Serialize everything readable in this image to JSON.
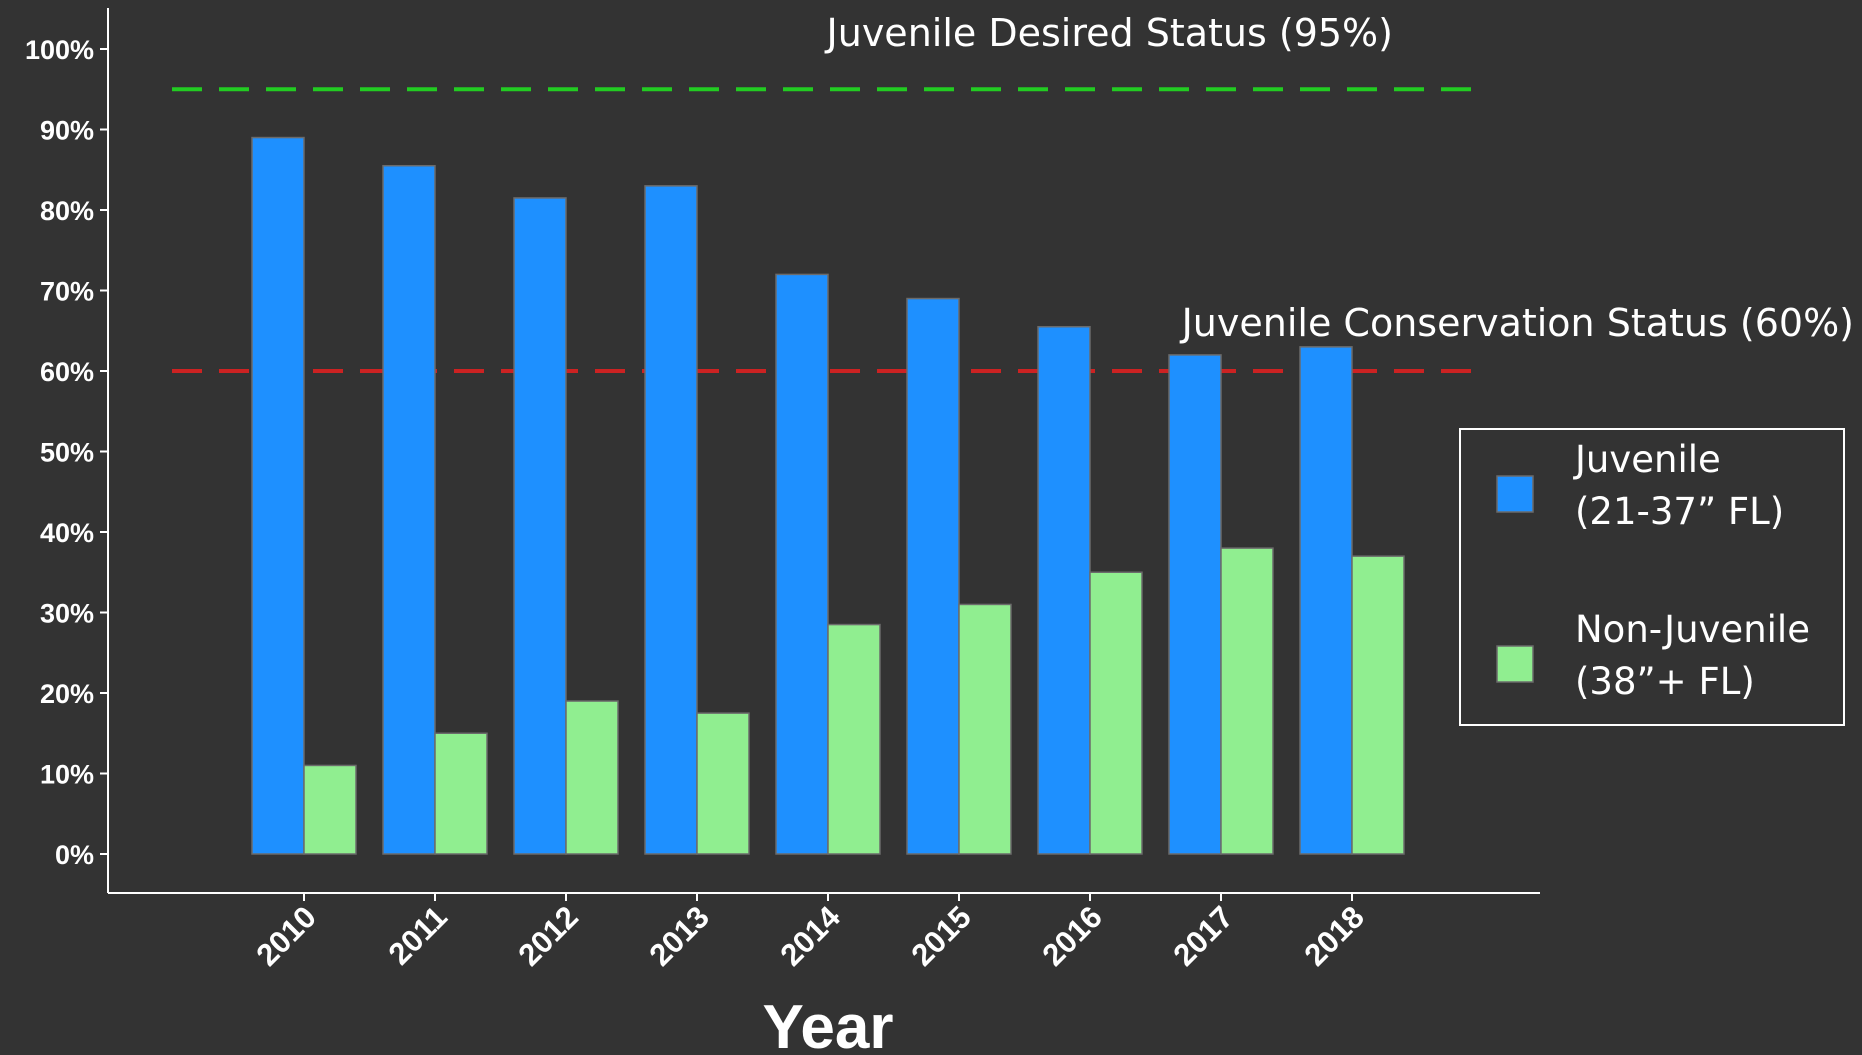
{
  "chart_data": {
    "type": "bar",
    "categories": [
      "2010",
      "2011",
      "2012",
      "2013",
      "2014",
      "2015",
      "2016",
      "2017",
      "2018"
    ],
    "series": [
      {
        "name": "Juvenile (21-37” FL)",
        "label_lines": [
          "Juvenile",
          "(21-37” FL)"
        ],
        "color": "#1E90FF",
        "values": [
          89,
          85.5,
          81.5,
          83,
          72,
          69,
          65.5,
          62,
          63
        ]
      },
      {
        "name": "Non-Juvenile (38”+ FL)",
        "label_lines": [
          "Non-Juvenile",
          "(38”+ FL)"
        ],
        "color": "#90EE90",
        "values": [
          11,
          15,
          19,
          17.5,
          28.5,
          31,
          35,
          38,
          37
        ]
      }
    ],
    "reference_lines": [
      {
        "label": "Juvenile Desired Status (95%)",
        "value": 95,
        "color": "#22CC22"
      },
      {
        "label": "Juvenile Conservation Status (60%)",
        "value": 60,
        "color": "#CC2222"
      }
    ],
    "xlabel": "Year",
    "ylabel": "",
    "ylim": [
      0,
      100
    ],
    "yticks": [
      0,
      10,
      20,
      30,
      40,
      50,
      60,
      70,
      80,
      90,
      100
    ],
    "ytick_labels": [
      "0%",
      "10%",
      "20%",
      "30%",
      "40%",
      "50%",
      "60%",
      "70%",
      "80%",
      "90%",
      "100%"
    ],
    "grid": false,
    "legend_position": "right",
    "background": "#333333"
  }
}
